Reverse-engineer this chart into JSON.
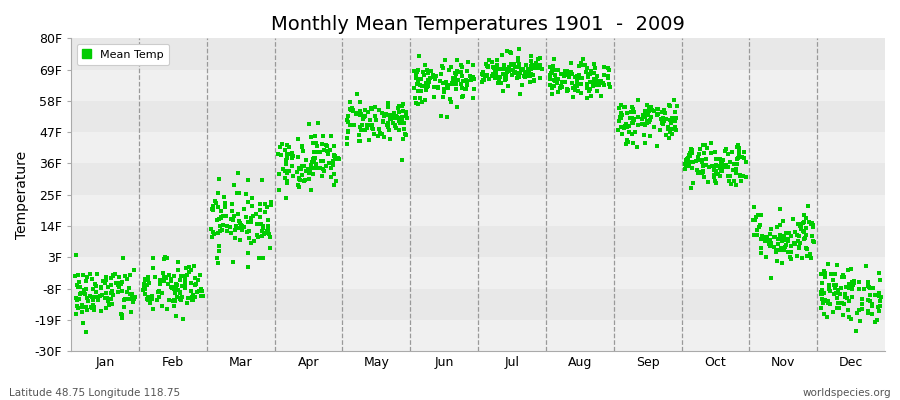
{
  "title": "Monthly Mean Temperatures 1901  -  2009",
  "ylabel": "Temperature",
  "months": [
    "Jan",
    "Feb",
    "Mar",
    "Apr",
    "May",
    "Jun",
    "Jul",
    "Aug",
    "Sep",
    "Oct",
    "Nov",
    "Dec"
  ],
  "yticks": [
    -30,
    -19,
    -8,
    3,
    14,
    25,
    36,
    47,
    58,
    69,
    80
  ],
  "ylim": [
    -30,
    80
  ],
  "dot_color": "#00CC00",
  "bg_color": "#ffffff",
  "band_colors": [
    "#f0f0f0",
    "#e8e8e8"
  ],
  "n_years": 109,
  "monthly_means": [
    -10,
    -8,
    16,
    37,
    51,
    64,
    69,
    65,
    51,
    36,
    10,
    -10
  ],
  "monthly_stds": [
    5,
    5,
    6,
    5,
    4,
    4,
    3,
    3,
    4,
    4,
    5,
    5
  ],
  "bottom_left_text": "Latitude 48.75 Longitude 118.75",
  "bottom_right_text": "worldspecies.org",
  "legend_label": "Mean Temp"
}
